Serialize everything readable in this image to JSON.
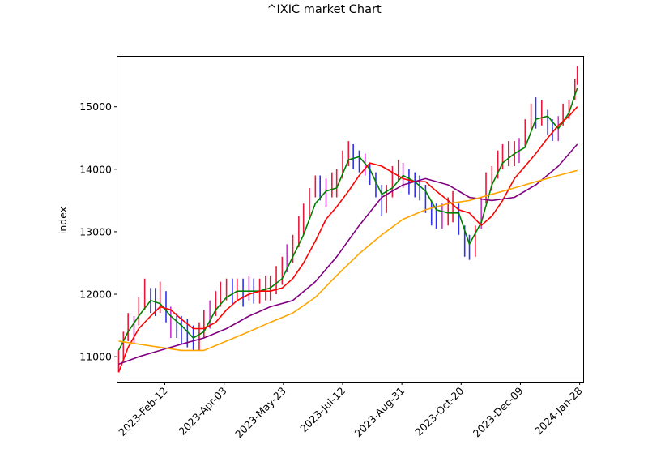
{
  "chart_data": {
    "type": "line",
    "title": "^IXIC market Chart",
    "xlabel": "",
    "ylabel": "index",
    "xlim": [
      "2023-01-03",
      "2024-01-31"
    ],
    "ylim": [
      10600,
      15800
    ],
    "x_ticks": [
      "2023-Feb-12",
      "2023-Apr-03",
      "2023-May-23",
      "2023-Jul-12",
      "2023-Aug-31",
      "2023-Oct-20",
      "2023-Dec-09",
      "2024-Jan-28"
    ],
    "y_ticks": [
      11000,
      12000,
      13000,
      14000,
      15000
    ],
    "grid": false,
    "candle_colors": {
      "up": "#e8183c",
      "down": "#3030ee",
      "mixed": "#cc33cc"
    },
    "candles": {
      "x": [
        "2023-01-04",
        "2023-01-08",
        "2023-01-12",
        "2023-01-17",
        "2023-01-21",
        "2023-01-26",
        "2023-01-31",
        "2023-02-04",
        "2023-02-08",
        "2023-02-13",
        "2023-02-17",
        "2023-02-22",
        "2023-02-26",
        "2023-03-03",
        "2023-03-08",
        "2023-03-13",
        "2023-03-17",
        "2023-03-22",
        "2023-03-27",
        "2023-03-31",
        "2023-04-05",
        "2023-04-10",
        "2023-04-14",
        "2023-04-19",
        "2023-04-24",
        "2023-04-28",
        "2023-05-03",
        "2023-05-08",
        "2023-05-12",
        "2023-05-17",
        "2023-05-22",
        "2023-05-26",
        "2023-05-31",
        "2023-06-05",
        "2023-06-09",
        "2023-06-14",
        "2023-06-19",
        "2023-06-23",
        "2023-06-28",
        "2023-07-03",
        "2023-07-07",
        "2023-07-12",
        "2023-07-17",
        "2023-07-21",
        "2023-07-26",
        "2023-07-31",
        "2023-08-04",
        "2023-08-09",
        "2023-08-14",
        "2023-08-18",
        "2023-08-23",
        "2023-08-28",
        "2023-09-01",
        "2023-09-06",
        "2023-09-11",
        "2023-09-15",
        "2023-09-20",
        "2023-09-25",
        "2023-09-29",
        "2023-10-04",
        "2023-10-09",
        "2023-10-13",
        "2023-10-18",
        "2023-10-23",
        "2023-10-27",
        "2023-11-01",
        "2023-11-06",
        "2023-11-10",
        "2023-11-15",
        "2023-11-20",
        "2023-11-24",
        "2023-11-29",
        "2023-12-04",
        "2023-12-08",
        "2023-12-13",
        "2023-12-18",
        "2023-12-22",
        "2023-12-27",
        "2024-01-01",
        "2024-01-05",
        "2024-01-10",
        "2024-01-14",
        "2024-01-19",
        "2024-01-24",
        "2024-01-26"
      ],
      "close": [
        10900,
        11150,
        11450,
        11400,
        11700,
        11950,
        11900,
        11850,
        11950,
        11800,
        11550,
        11500,
        11400,
        11350,
        11250,
        11300,
        11500,
        11650,
        11850,
        11950,
        12100,
        12050,
        12100,
        12000,
        12100,
        12050,
        12050,
        12100,
        12100,
        12200,
        12350,
        12550,
        12700,
        12950,
        13200,
        13450,
        13750,
        13700,
        13600,
        13750,
        13800,
        14050,
        14250,
        14200,
        14150,
        14100,
        13950,
        13750,
        13500,
        13500,
        13800,
        14000,
        13900,
        13800,
        13750,
        13700,
        13550,
        13300,
        13250,
        13250,
        13300,
        13400,
        13200,
        12850,
        12700,
        12800,
        13300,
        13700,
        13850,
        14100,
        14200,
        14250,
        14250,
        14300,
        14550,
        14900,
        14850,
        14950,
        14750,
        14600,
        14650,
        14900,
        15000,
        15300,
        15500
      ],
      "high": [
        11100,
        11400,
        11700,
        11650,
        11950,
        12250,
        12100,
        12100,
        12200,
        12050,
        11800,
        11700,
        11650,
        11600,
        11500,
        11550,
        11750,
        11900,
        12050,
        12200,
        12250,
        12250,
        12250,
        12250,
        12300,
        12250,
        12250,
        12300,
        12300,
        12450,
        12600,
        12800,
        12950,
        13250,
        13450,
        13700,
        13900,
        13900,
        13850,
        13950,
        14000,
        14300,
        14450,
        14400,
        14300,
        14250,
        14100,
        13950,
        13750,
        13750,
        14050,
        14150,
        14100,
        14000,
        13950,
        13900,
        13750,
        13500,
        13450,
        13450,
        13550,
        13650,
        13450,
        13100,
        12950,
        13100,
        13550,
        13950,
        14050,
        14300,
        14400,
        14450,
        14450,
        14500,
        14800,
        15050,
        15150,
        15100,
        14950,
        14800,
        14850,
        15050,
        15100,
        15450,
        15650
      ],
      "low": [
        10750,
        10950,
        11250,
        11200,
        11500,
        11750,
        11700,
        11650,
        11700,
        11550,
        11300,
        11300,
        11200,
        11150,
        11100,
        11100,
        11300,
        11450,
        11650,
        11800,
        11900,
        11850,
        11900,
        11800,
        11900,
        11850,
        11850,
        11900,
        11900,
        12000,
        12150,
        12350,
        12500,
        12750,
        12950,
        13250,
        13550,
        13500,
        13400,
        13550,
        13550,
        13850,
        14050,
        14000,
        13950,
        13900,
        13750,
        13550,
        13250,
        13300,
        13550,
        13800,
        13700,
        13600,
        13550,
        13500,
        13300,
        13100,
        13050,
        13050,
        13100,
        13150,
        12950,
        12600,
        12550,
        12600,
        13050,
        13450,
        13650,
        13850,
        14000,
        14050,
        14050,
        14100,
        14350,
        14650,
        14650,
        14700,
        14550,
        14450,
        14450,
        14700,
        14800,
        15100,
        15350
      ]
    },
    "series": [
      {
        "color": "#008000",
        "x": [
          "2023-01-04",
          "2023-01-12",
          "2023-01-21",
          "2023-01-31",
          "2023-02-08",
          "2023-02-17",
          "2023-02-26",
          "2023-03-08",
          "2023-03-17",
          "2023-03-27",
          "2023-04-05",
          "2023-04-14",
          "2023-04-24",
          "2023-05-03",
          "2023-05-12",
          "2023-05-22",
          "2023-05-31",
          "2023-06-09",
          "2023-06-19",
          "2023-06-28",
          "2023-07-07",
          "2023-07-17",
          "2023-07-26",
          "2023-08-04",
          "2023-08-14",
          "2023-08-23",
          "2023-09-01",
          "2023-09-11",
          "2023-09-20",
          "2023-09-29",
          "2023-10-09",
          "2023-10-18",
          "2023-10-27",
          "2023-11-06",
          "2023-11-15",
          "2023-11-24",
          "2023-12-04",
          "2023-12-13",
          "2023-12-22",
          "2024-01-01",
          "2024-01-10",
          "2024-01-19",
          "2024-01-26"
        ],
        "values": [
          11100,
          11400,
          11650,
          11900,
          11850,
          11650,
          11500,
          11300,
          11400,
          11750,
          11950,
          12050,
          12050,
          12050,
          12100,
          12250,
          12600,
          12950,
          13450,
          13650,
          13700,
          14150,
          14200,
          14000,
          13600,
          13700,
          13900,
          13800,
          13650,
          13350,
          13300,
          13300,
          12800,
          13150,
          13750,
          14100,
          14250,
          14350,
          14800,
          14850,
          14650,
          14900,
          15300
        ]
      },
      {
        "color": "#ff0000",
        "x": [
          "2023-01-04",
          "2023-01-12",
          "2023-01-21",
          "2023-01-31",
          "2023-02-08",
          "2023-02-17",
          "2023-02-26",
          "2023-03-08",
          "2023-03-17",
          "2023-03-27",
          "2023-04-05",
          "2023-04-14",
          "2023-04-24",
          "2023-05-03",
          "2023-05-12",
          "2023-05-22",
          "2023-05-31",
          "2023-06-09",
          "2023-06-19",
          "2023-06-28",
          "2023-07-07",
          "2023-07-17",
          "2023-07-26",
          "2023-08-04",
          "2023-08-14",
          "2023-08-23",
          "2023-09-01",
          "2023-09-11",
          "2023-09-20",
          "2023-09-29",
          "2023-10-09",
          "2023-10-18",
          "2023-10-27",
          "2023-11-06",
          "2023-11-15",
          "2023-11-24",
          "2023-12-04",
          "2023-12-13",
          "2023-12-22",
          "2024-01-01",
          "2024-01-10",
          "2024-01-19",
          "2024-01-26"
        ],
        "values": [
          10750,
          11150,
          11450,
          11650,
          11800,
          11750,
          11600,
          11450,
          11450,
          11550,
          11750,
          11900,
          12000,
          12050,
          12050,
          12100,
          12250,
          12500,
          12850,
          13200,
          13400,
          13650,
          13900,
          14100,
          14050,
          13950,
          13850,
          13800,
          13800,
          13650,
          13500,
          13350,
          13300,
          13100,
          13250,
          13500,
          13850,
          14050,
          14250,
          14500,
          14700,
          14850,
          15000
        ]
      },
      {
        "color": "#800080",
        "x": [
          "2023-01-04",
          "2023-01-21",
          "2023-02-08",
          "2023-02-26",
          "2023-03-17",
          "2023-04-05",
          "2023-04-24",
          "2023-05-12",
          "2023-05-31",
          "2023-06-19",
          "2023-07-07",
          "2023-07-26",
          "2023-08-14",
          "2023-09-01",
          "2023-09-20",
          "2023-10-09",
          "2023-10-27",
          "2023-11-15",
          "2023-12-04",
          "2023-12-22",
          "2024-01-10",
          "2024-01-26"
        ],
        "values": [
          10880,
          11000,
          11100,
          11200,
          11300,
          11450,
          11650,
          11800,
          11900,
          12200,
          12600,
          13100,
          13550,
          13750,
          13850,
          13750,
          13550,
          13500,
          13550,
          13750,
          14050,
          14400
        ]
      },
      {
        "color": "#ffa500",
        "x": [
          "2023-01-04",
          "2023-01-21",
          "2023-02-08",
          "2023-02-26",
          "2023-03-17",
          "2023-04-05",
          "2023-04-24",
          "2023-05-12",
          "2023-05-31",
          "2023-06-19",
          "2023-07-07",
          "2023-07-26",
          "2023-08-14",
          "2023-09-01",
          "2023-09-20",
          "2023-10-09",
          "2023-10-27",
          "2023-11-15",
          "2023-12-04",
          "2023-12-22",
          "2024-01-10",
          "2024-01-26"
        ],
        "values": [
          11250,
          11200,
          11150,
          11100,
          11100,
          11250,
          11400,
          11550,
          11700,
          11950,
          12300,
          12650,
          12950,
          13200,
          13350,
          13450,
          13500,
          13600,
          13700,
          13800,
          13900,
          13980
        ]
      }
    ]
  }
}
